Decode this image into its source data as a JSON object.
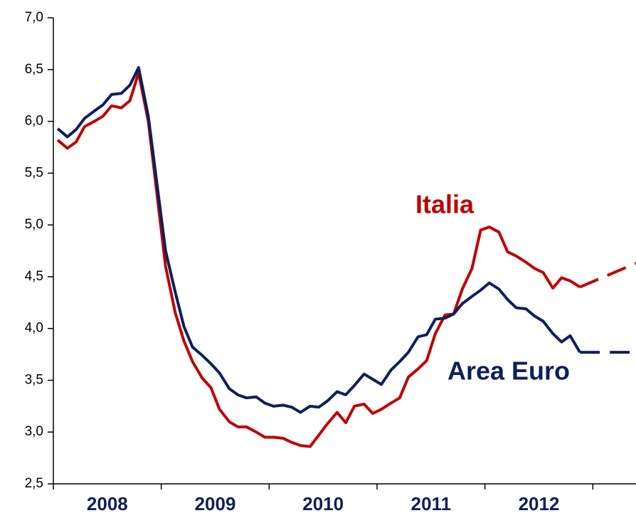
{
  "chart_data": {
    "type": "line",
    "categories": [
      "2008",
      "2009",
      "2010",
      "2011",
      "2012"
    ],
    "x": [
      2008.04,
      2008.13,
      2008.21,
      2008.29,
      2008.38,
      2008.46,
      2008.54,
      2008.63,
      2008.71,
      2008.79,
      2008.88,
      2008.96,
      2009.04,
      2009.13,
      2009.21,
      2009.29,
      2009.38,
      2009.46,
      2009.54,
      2009.63,
      2009.71,
      2009.79,
      2009.88,
      2009.96,
      2010.04,
      2010.13,
      2010.21,
      2010.29,
      2010.38,
      2010.46,
      2010.54,
      2010.63,
      2010.71,
      2010.79,
      2010.88,
      2010.96,
      2011.04,
      2011.13,
      2011.21,
      2011.29,
      2011.38,
      2011.46,
      2011.54,
      2011.63,
      2011.71,
      2011.79,
      2011.88,
      2011.96,
      2012.04,
      2012.13,
      2012.21,
      2012.29,
      2012.38,
      2012.46,
      2012.54,
      2012.63,
      2012.71,
      2012.79,
      2012.88,
      2013.4
    ],
    "dashed_from": 58,
    "series": [
      {
        "name": "Italia",
        "color": "#c00000",
        "values": [
          5.82,
          5.74,
          5.8,
          5.95,
          6.0,
          6.05,
          6.15,
          6.13,
          6.2,
          6.47,
          6.0,
          5.3,
          4.6,
          4.15,
          3.88,
          3.68,
          3.52,
          3.43,
          3.22,
          3.1,
          3.05,
          3.05,
          3.0,
          2.95,
          2.95,
          2.94,
          2.9,
          2.87,
          2.86,
          2.97,
          3.08,
          3.19,
          3.09,
          3.25,
          3.27,
          3.18,
          3.22,
          3.28,
          3.33,
          3.53,
          3.61,
          3.69,
          3.95,
          4.13,
          4.14,
          4.38,
          4.58,
          4.95,
          4.98,
          4.93,
          4.74,
          4.7,
          4.64,
          4.58,
          4.54,
          4.39,
          4.49,
          4.46,
          4.4,
          4.63
        ]
      },
      {
        "name": "Area Euro",
        "color": "#0d1f5c",
        "values": [
          5.93,
          5.85,
          5.92,
          6.03,
          6.1,
          6.16,
          6.26,
          6.27,
          6.35,
          6.52,
          6.05,
          5.4,
          4.75,
          4.35,
          4.02,
          3.82,
          3.74,
          3.66,
          3.57,
          3.42,
          3.36,
          3.33,
          3.34,
          3.28,
          3.25,
          3.26,
          3.24,
          3.19,
          3.25,
          3.24,
          3.3,
          3.39,
          3.36,
          3.45,
          3.56,
          3.51,
          3.46,
          3.6,
          3.68,
          3.77,
          3.92,
          3.94,
          4.09,
          4.1,
          4.14,
          4.24,
          4.31,
          4.37,
          4.44,
          4.38,
          4.28,
          4.2,
          4.19,
          4.12,
          4.07,
          3.95,
          3.87,
          3.93,
          3.77,
          3.77
        ]
      }
    ],
    "xlim": [
      2008,
      2013.4
    ],
    "ylim": [
      2.5,
      7.0
    ],
    "yticks": [
      {
        "value": 2.5,
        "label": "2,5"
      },
      {
        "value": 3.0,
        "label": "3,0"
      },
      {
        "value": 3.5,
        "label": "3,5"
      },
      {
        "value": 4.0,
        "label": "4,0"
      },
      {
        "value": 4.5,
        "label": "4,5"
      },
      {
        "value": 5.0,
        "label": "5,0"
      },
      {
        "value": 5.5,
        "label": "5,5"
      },
      {
        "value": 6.0,
        "label": "6,0"
      },
      {
        "value": 6.5,
        "label": "6,5"
      },
      {
        "value": 7.0,
        "label": "7,0"
      }
    ],
    "annotations": [
      {
        "text": "Italia",
        "series": 0
      },
      {
        "text": "Area Euro",
        "series": 1
      }
    ],
    "grid": false
  }
}
